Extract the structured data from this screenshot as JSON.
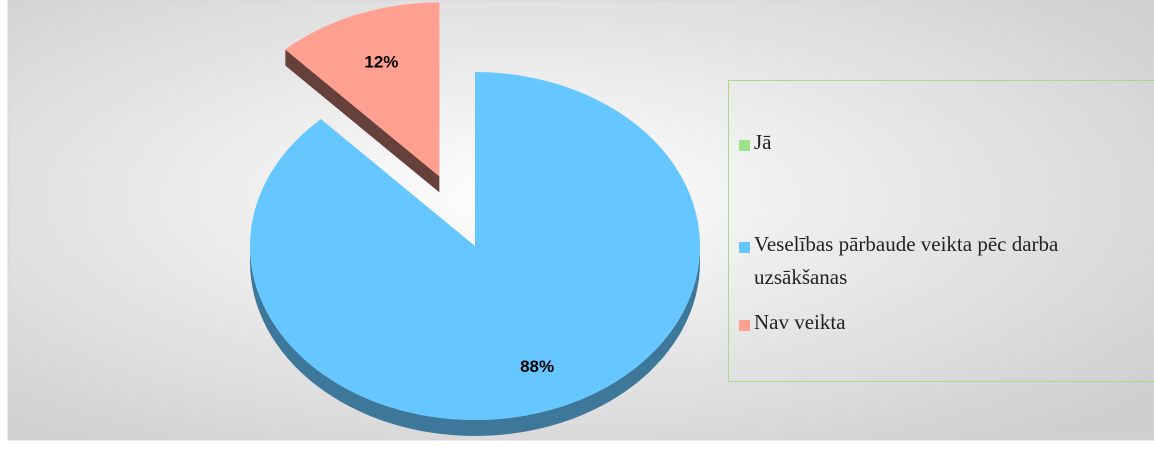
{
  "chart_data": {
    "type": "pie",
    "categories": [
      "Jā",
      "Veselības pārbaude veikta pēc darba uzsākšanas",
      "Nav veikta"
    ],
    "values": [
      0,
      88,
      12
    ],
    "value_labels": [
      null,
      "88%",
      "12%"
    ],
    "colors": [
      "#9be38a",
      "#66c6ff",
      "#ffa090"
    ],
    "exploded": [
      false,
      false,
      true
    ],
    "legend": "right"
  }
}
